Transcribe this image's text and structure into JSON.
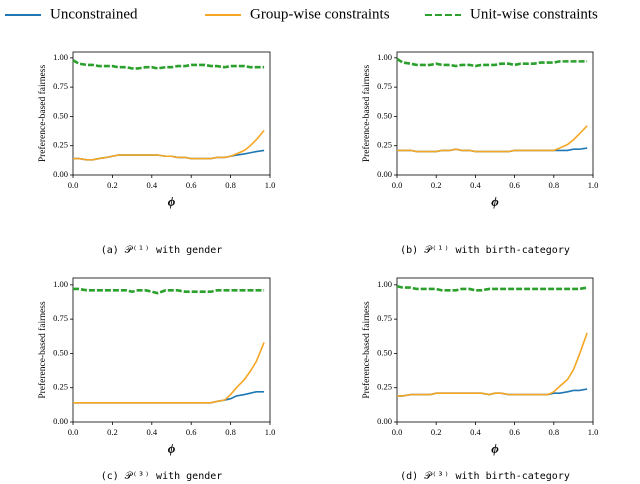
{
  "chart_data": [
    {
      "type": "line",
      "caption": "(a) 𝒫⁽¹⁾ with gender",
      "xlabel": "ϕ",
      "ylabel": "Preference-based fairness",
      "xlim": [
        0,
        1
      ],
      "ylim": [
        0,
        1.05
      ],
      "xticks": [
        {
          "value": 0,
          "label": "0.0"
        },
        {
          "value": 0.2,
          "label": "0.2"
        },
        {
          "value": 0.4,
          "label": "0.4"
        },
        {
          "value": 0.6,
          "label": "0.6"
        },
        {
          "value": 0.8,
          "label": "0.8"
        },
        {
          "value": 1,
          "label": "1.0"
        }
      ],
      "yticks": [
        {
          "value": 0,
          "label": "0.00"
        },
        {
          "value": 0.25,
          "label": "0.25"
        },
        {
          "value": 0.5,
          "label": "0.50"
        },
        {
          "value": 0.75,
          "label": "0.75"
        },
        {
          "value": 1,
          "label": "1.00"
        }
      ],
      "x": [
        0.0,
        0.03,
        0.07,
        0.1,
        0.13,
        0.17,
        0.2,
        0.23,
        0.27,
        0.3,
        0.33,
        0.37,
        0.4,
        0.43,
        0.47,
        0.5,
        0.53,
        0.57,
        0.6,
        0.63,
        0.67,
        0.7,
        0.73,
        0.77,
        0.8,
        0.83,
        0.87,
        0.9,
        0.93,
        0.97
      ],
      "series": [
        {
          "name": "Unconstrained",
          "color": "#1f77b4",
          "values": [
            0.14,
            0.14,
            0.13,
            0.13,
            0.14,
            0.15,
            0.16,
            0.17,
            0.17,
            0.17,
            0.17,
            0.17,
            0.17,
            0.17,
            0.16,
            0.16,
            0.15,
            0.15,
            0.14,
            0.14,
            0.14,
            0.14,
            0.15,
            0.15,
            0.16,
            0.17,
            0.18,
            0.19,
            0.2,
            0.21
          ]
        },
        {
          "name": "Group-wise constraints",
          "color": "#f5a623",
          "values": [
            0.14,
            0.14,
            0.13,
            0.13,
            0.14,
            0.15,
            0.16,
            0.17,
            0.17,
            0.17,
            0.17,
            0.17,
            0.17,
            0.17,
            0.16,
            0.16,
            0.15,
            0.15,
            0.14,
            0.14,
            0.14,
            0.14,
            0.15,
            0.15,
            0.16,
            0.18,
            0.21,
            0.25,
            0.3,
            0.38
          ]
        },
        {
          "name": "Unit-wise constraints",
          "color": "#2ca02c",
          "dashed": true,
          "values": [
            0.98,
            0.95,
            0.94,
            0.94,
            0.93,
            0.93,
            0.93,
            0.92,
            0.92,
            0.91,
            0.91,
            0.92,
            0.92,
            0.91,
            0.92,
            0.92,
            0.93,
            0.93,
            0.94,
            0.94,
            0.94,
            0.93,
            0.93,
            0.92,
            0.93,
            0.93,
            0.93,
            0.92,
            0.92,
            0.92
          ]
        }
      ]
    },
    {
      "type": "line",
      "caption": "(b) 𝒫⁽¹⁾ with birth-category",
      "xlabel": "ϕ",
      "ylabel": "Preference-based fairness",
      "xlim": [
        0,
        1
      ],
      "ylim": [
        0,
        1.05
      ],
      "xticks": [
        {
          "value": 0,
          "label": "0.0"
        },
        {
          "value": 0.2,
          "label": "0.2"
        },
        {
          "value": 0.4,
          "label": "0.4"
        },
        {
          "value": 0.6,
          "label": "0.6"
        },
        {
          "value": 0.8,
          "label": "0.8"
        },
        {
          "value": 1,
          "label": "1.0"
        }
      ],
      "yticks": [
        {
          "value": 0,
          "label": "0.00"
        },
        {
          "value": 0.25,
          "label": "0.25"
        },
        {
          "value": 0.5,
          "label": "0.50"
        },
        {
          "value": 0.75,
          "label": "0.75"
        },
        {
          "value": 1,
          "label": "1.00"
        }
      ],
      "x": [
        0.0,
        0.03,
        0.07,
        0.1,
        0.13,
        0.17,
        0.2,
        0.23,
        0.27,
        0.3,
        0.33,
        0.37,
        0.4,
        0.43,
        0.47,
        0.5,
        0.53,
        0.57,
        0.6,
        0.63,
        0.67,
        0.7,
        0.73,
        0.77,
        0.8,
        0.83,
        0.87,
        0.9,
        0.93,
        0.97
      ],
      "series": [
        {
          "name": "Unconstrained",
          "color": "#1f77b4",
          "values": [
            0.21,
            0.21,
            0.21,
            0.2,
            0.2,
            0.2,
            0.2,
            0.21,
            0.21,
            0.22,
            0.21,
            0.21,
            0.2,
            0.2,
            0.2,
            0.2,
            0.2,
            0.2,
            0.21,
            0.21,
            0.21,
            0.21,
            0.21,
            0.21,
            0.21,
            0.21,
            0.21,
            0.22,
            0.22,
            0.23
          ]
        },
        {
          "name": "Group-wise constraints",
          "color": "#f5a623",
          "values": [
            0.21,
            0.21,
            0.21,
            0.2,
            0.2,
            0.2,
            0.2,
            0.21,
            0.21,
            0.22,
            0.21,
            0.21,
            0.2,
            0.2,
            0.2,
            0.2,
            0.2,
            0.2,
            0.21,
            0.21,
            0.21,
            0.21,
            0.21,
            0.21,
            0.21,
            0.23,
            0.26,
            0.3,
            0.35,
            0.42
          ]
        },
        {
          "name": "Unit-wise constraints",
          "color": "#2ca02c",
          "dashed": true,
          "values": [
            0.99,
            0.96,
            0.95,
            0.94,
            0.94,
            0.94,
            0.95,
            0.94,
            0.94,
            0.93,
            0.94,
            0.94,
            0.93,
            0.94,
            0.94,
            0.94,
            0.95,
            0.95,
            0.94,
            0.95,
            0.95,
            0.95,
            0.96,
            0.96,
            0.96,
            0.97,
            0.97,
            0.97,
            0.97,
            0.97
          ]
        }
      ]
    },
    {
      "type": "line",
      "caption": "(c) 𝒫⁽³⁾ with gender",
      "xlabel": "ϕ",
      "ylabel": "Preference-based fairness",
      "xlim": [
        0,
        1
      ],
      "ylim": [
        0,
        1.05
      ],
      "xticks": [
        {
          "value": 0,
          "label": "0.0"
        },
        {
          "value": 0.2,
          "label": "0.2"
        },
        {
          "value": 0.4,
          "label": "0.4"
        },
        {
          "value": 0.6,
          "label": "0.6"
        },
        {
          "value": 0.8,
          "label": "0.8"
        },
        {
          "value": 1,
          "label": "1.0"
        }
      ],
      "yticks": [
        {
          "value": 0,
          "label": "0.00"
        },
        {
          "value": 0.25,
          "label": "0.25"
        },
        {
          "value": 0.5,
          "label": "0.50"
        },
        {
          "value": 0.75,
          "label": "0.75"
        },
        {
          "value": 1,
          "label": "1.00"
        }
      ],
      "x": [
        0.0,
        0.03,
        0.07,
        0.1,
        0.13,
        0.17,
        0.2,
        0.23,
        0.27,
        0.3,
        0.33,
        0.37,
        0.4,
        0.43,
        0.47,
        0.5,
        0.53,
        0.57,
        0.6,
        0.63,
        0.67,
        0.7,
        0.73,
        0.77,
        0.8,
        0.83,
        0.87,
        0.9,
        0.93,
        0.97
      ],
      "series": [
        {
          "name": "Unconstrained",
          "color": "#1f77b4",
          "values": [
            0.14,
            0.14,
            0.14,
            0.14,
            0.14,
            0.14,
            0.14,
            0.14,
            0.14,
            0.14,
            0.14,
            0.14,
            0.14,
            0.14,
            0.14,
            0.14,
            0.14,
            0.14,
            0.14,
            0.14,
            0.14,
            0.14,
            0.15,
            0.16,
            0.17,
            0.19,
            0.2,
            0.21,
            0.22,
            0.22
          ]
        },
        {
          "name": "Group-wise constraints",
          "color": "#f5a623",
          "values": [
            0.14,
            0.14,
            0.14,
            0.14,
            0.14,
            0.14,
            0.14,
            0.14,
            0.14,
            0.14,
            0.14,
            0.14,
            0.14,
            0.14,
            0.14,
            0.14,
            0.14,
            0.14,
            0.14,
            0.14,
            0.14,
            0.14,
            0.15,
            0.16,
            0.2,
            0.25,
            0.31,
            0.37,
            0.44,
            0.58
          ]
        },
        {
          "name": "Unit-wise constraints",
          "color": "#2ca02c",
          "dashed": true,
          "values": [
            0.97,
            0.97,
            0.96,
            0.96,
            0.96,
            0.96,
            0.96,
            0.96,
            0.96,
            0.95,
            0.96,
            0.96,
            0.95,
            0.94,
            0.96,
            0.96,
            0.96,
            0.95,
            0.95,
            0.95,
            0.95,
            0.95,
            0.96,
            0.96,
            0.96,
            0.96,
            0.96,
            0.96,
            0.96,
            0.96
          ]
        }
      ]
    },
    {
      "type": "line",
      "caption": "(d) 𝒫⁽³⁾ with birth-category",
      "xlabel": "ϕ",
      "ylabel": "Preference-based fairness",
      "xlim": [
        0,
        1
      ],
      "ylim": [
        0,
        1.05
      ],
      "xticks": [
        {
          "value": 0,
          "label": "0.0"
        },
        {
          "value": 0.2,
          "label": "0.2"
        },
        {
          "value": 0.4,
          "label": "0.4"
        },
        {
          "value": 0.6,
          "label": "0.6"
        },
        {
          "value": 0.8,
          "label": "0.8"
        },
        {
          "value": 1,
          "label": "1.0"
        }
      ],
      "yticks": [
        {
          "value": 0,
          "label": "0.00"
        },
        {
          "value": 0.25,
          "label": "0.25"
        },
        {
          "value": 0.5,
          "label": "0.50"
        },
        {
          "value": 0.75,
          "label": "0.75"
        },
        {
          "value": 1,
          "label": "1.00"
        }
      ],
      "x": [
        0.0,
        0.03,
        0.07,
        0.1,
        0.13,
        0.17,
        0.2,
        0.23,
        0.27,
        0.3,
        0.33,
        0.37,
        0.4,
        0.43,
        0.47,
        0.5,
        0.53,
        0.57,
        0.6,
        0.63,
        0.67,
        0.7,
        0.73,
        0.77,
        0.8,
        0.83,
        0.87,
        0.9,
        0.93,
        0.97
      ],
      "series": [
        {
          "name": "Unconstrained",
          "color": "#1f77b4",
          "values": [
            0.19,
            0.19,
            0.2,
            0.2,
            0.2,
            0.2,
            0.21,
            0.21,
            0.21,
            0.21,
            0.21,
            0.21,
            0.21,
            0.21,
            0.2,
            0.21,
            0.21,
            0.2,
            0.2,
            0.2,
            0.2,
            0.2,
            0.2,
            0.2,
            0.21,
            0.21,
            0.22,
            0.23,
            0.23,
            0.24
          ]
        },
        {
          "name": "Group-wise constraints",
          "color": "#f5a623",
          "values": [
            0.19,
            0.19,
            0.2,
            0.2,
            0.2,
            0.2,
            0.21,
            0.21,
            0.21,
            0.21,
            0.21,
            0.21,
            0.21,
            0.21,
            0.2,
            0.21,
            0.21,
            0.2,
            0.2,
            0.2,
            0.2,
            0.2,
            0.2,
            0.2,
            0.22,
            0.26,
            0.31,
            0.38,
            0.49,
            0.65
          ]
        },
        {
          "name": "Unit-wise constraints",
          "color": "#2ca02c",
          "dashed": true,
          "values": [
            0.99,
            0.98,
            0.98,
            0.97,
            0.97,
            0.97,
            0.97,
            0.96,
            0.96,
            0.96,
            0.97,
            0.97,
            0.96,
            0.96,
            0.97,
            0.97,
            0.97,
            0.97,
            0.97,
            0.97,
            0.97,
            0.97,
            0.97,
            0.97,
            0.97,
            0.97,
            0.97,
            0.97,
            0.97,
            0.98
          ]
        }
      ]
    }
  ]
}
